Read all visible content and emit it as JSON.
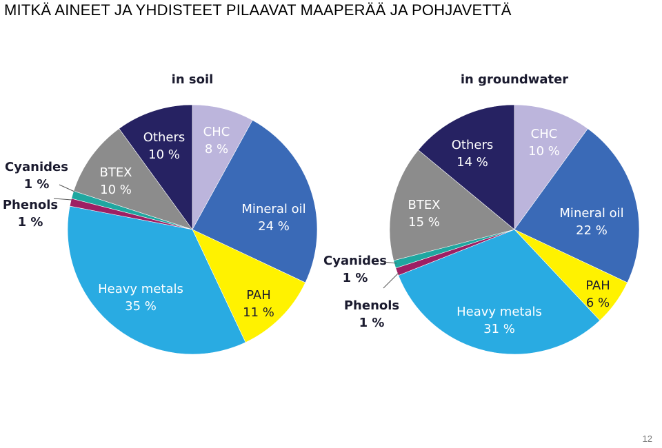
{
  "page": {
    "title": "MITKÄ AINEET JA YHDISTEET PILAAVAT MAAPERÄÄ JA POHJAVETTÄ",
    "page_number": "12"
  },
  "chart_data": [
    {
      "type": "pie",
      "title": "in soil",
      "slices": [
        {
          "name": "CHC",
          "value": 8,
          "label": "8 %",
          "color": "#bcb5dc",
          "text": "light"
        },
        {
          "name": "Mineral oil",
          "value": 24,
          "label": "24 %",
          "color": "#3a6ab7",
          "text": "light"
        },
        {
          "name": "PAH",
          "value": 11,
          "label": "11 %",
          "color": "#fff200",
          "text": "dark"
        },
        {
          "name": "Heavy metals",
          "value": 35,
          "label": "35 %",
          "color": "#29abe2",
          "text": "light"
        },
        {
          "name": "Phenols",
          "value": 1,
          "label": "1 %",
          "color": "#9e1f63",
          "text": "outside"
        },
        {
          "name": "Cyanides",
          "value": 1,
          "label": "1 %",
          "color": "#1fa7a0",
          "text": "outside"
        },
        {
          "name": "BTEX",
          "value": 10,
          "label": "10 %",
          "color": "#8c8c8c",
          "text": "light"
        },
        {
          "name": "Others",
          "value": 10,
          "label": "10 %",
          "color": "#262262",
          "text": "light"
        }
      ]
    },
    {
      "type": "pie",
      "title": "in groundwater",
      "slices": [
        {
          "name": "CHC",
          "value": 10,
          "label": "10 %",
          "color": "#bcb5dc",
          "text": "light"
        },
        {
          "name": "Mineral oil",
          "value": 22,
          "label": "22 %",
          "color": "#3a6ab7",
          "text": "light"
        },
        {
          "name": "PAH",
          "value": 6,
          "label": "6 %",
          "color": "#fff200",
          "text": "dark"
        },
        {
          "name": "Heavy metals",
          "value": 31,
          "label": "31 %",
          "color": "#29abe2",
          "text": "light"
        },
        {
          "name": "Phenols",
          "value": 1,
          "label": "1 %",
          "color": "#9e1f63",
          "text": "outside"
        },
        {
          "name": "Cyanides",
          "value": 1,
          "label": "1 %",
          "color": "#1fa7a0",
          "text": "outside"
        },
        {
          "name": "BTEX",
          "value": 15,
          "label": "15 %",
          "color": "#8c8c8c",
          "text": "light"
        },
        {
          "name": "Others",
          "value": 14,
          "label": "14 %",
          "color": "#262262",
          "text": "light"
        }
      ]
    }
  ]
}
